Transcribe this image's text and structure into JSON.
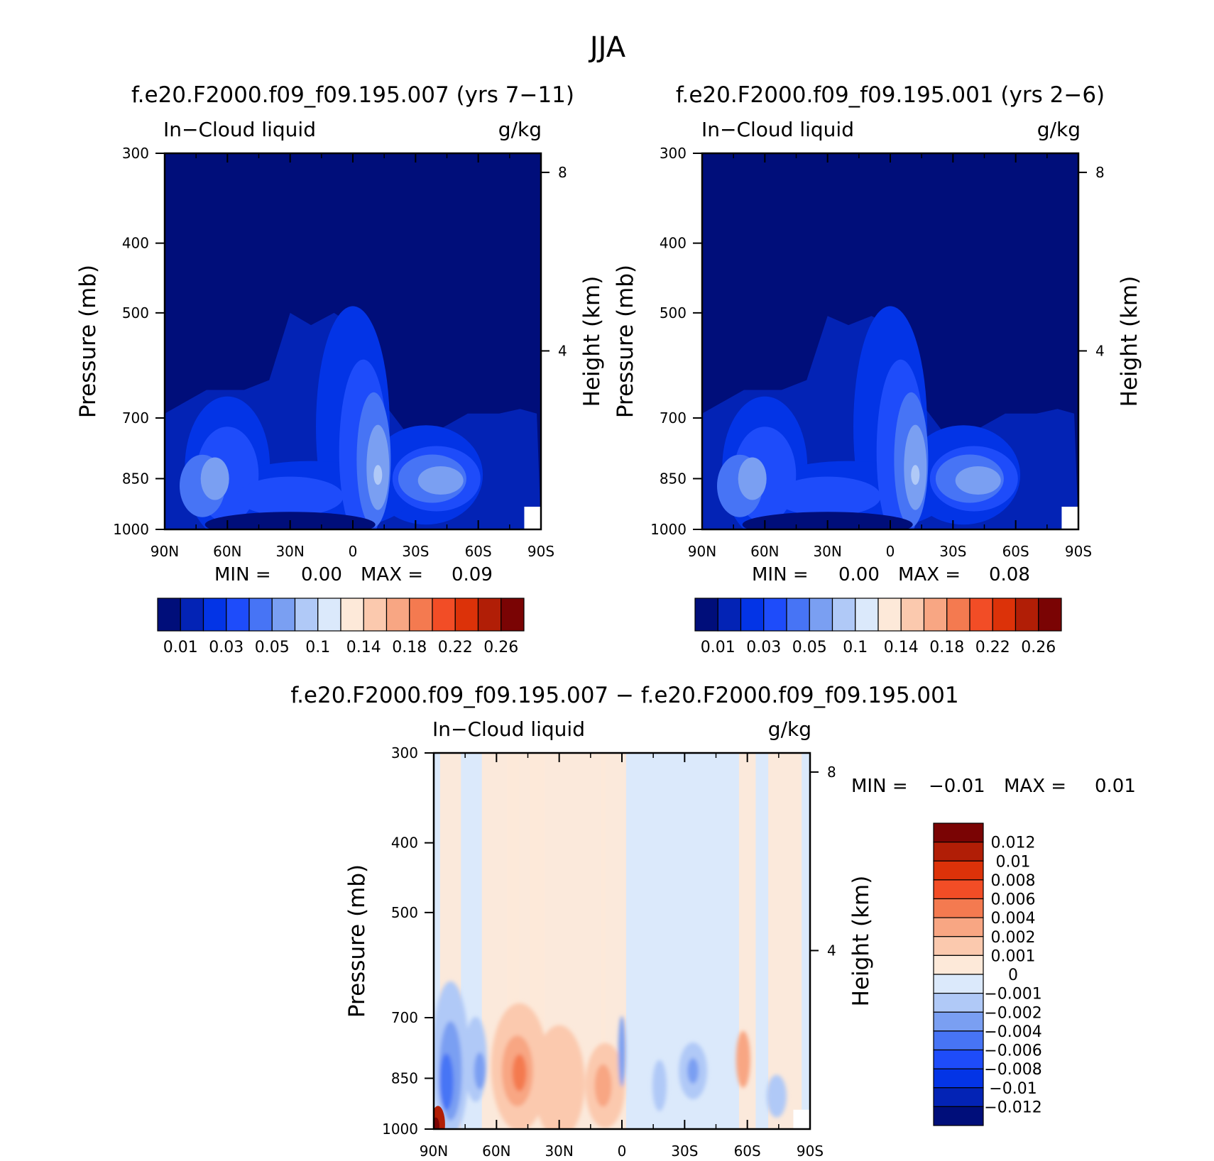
{
  "figure": {
    "title": "JJA"
  },
  "colors": {
    "abs_scale": [
      "#000e7a",
      "#0323b5",
      "#0334e6",
      "#1e4cfa",
      "#4774f5",
      "#7a9ff2",
      "#b0c9f7",
      "#dbe9fb",
      "#fde9d9",
      "#fbc9ae",
      "#f8a683",
      "#f47a50",
      "#f24d26",
      "#dc3209",
      "#b11e06",
      "#7a0404"
    ],
    "diff_scale": [
      "#000e7a",
      "#0323b5",
      "#0334e6",
      "#1e4cfa",
      "#4774f5",
      "#7a9ff2",
      "#b0c9f7",
      "#dbe9fb",
      "#fde9d9",
      "#fbc9ae",
      "#f8a683",
      "#f47a50",
      "#f24d26",
      "#dc3209",
      "#b11e06",
      "#7a0404"
    ]
  },
  "chart_data": [
    {
      "type": "heatmap",
      "title": "f.e20.F2000.f09_f09.195.007 (yrs 7−11)",
      "subtitle_left": "In−Cloud liquid",
      "subtitle_right": "g/kg",
      "xlabel": "",
      "ylabel": "Pressure (mb)",
      "ylabel_right": "Height (km)",
      "x_ticks": [
        "90N",
        "60N",
        "30N",
        "0",
        "30S",
        "60S",
        "90S"
      ],
      "y_ticks": [
        "300",
        "400",
        "500",
        "700",
        "850",
        "1000"
      ],
      "y2_ticks": [
        "8",
        "4"
      ],
      "ylim": [
        1000,
        300
      ],
      "y_scale": "log",
      "min_label": "MIN =",
      "min_value": "0.00",
      "max_label": "MAX =",
      "max_value": "0.09",
      "colorbar_labels": [
        "0.01",
        "0.03",
        "0.05",
        "0.1",
        "0.14",
        "0.18",
        "0.22",
        "0.26"
      ],
      "profile_top_pressure": [
        {
          "lat": 90,
          "p": 690
        },
        {
          "lat": 70,
          "p": 640
        },
        {
          "lat": 52,
          "p": 640
        },
        {
          "lat": 40,
          "p": 620
        },
        {
          "lat": 30,
          "p": 500
        },
        {
          "lat": 20,
          "p": 520
        },
        {
          "lat": 9,
          "p": 500
        },
        {
          "lat": 0,
          "p": 520
        },
        {
          "lat": -10,
          "p": 640
        },
        {
          "lat": -25,
          "p": 730
        },
        {
          "lat": -40,
          "p": 730
        },
        {
          "lat": -55,
          "p": 690
        },
        {
          "lat": -70,
          "p": 690
        },
        {
          "lat": -80,
          "p": 680
        },
        {
          "lat": -88,
          "p": 690
        }
      ]
    },
    {
      "type": "heatmap",
      "title": "f.e20.F2000.f09_f09.195.001 (yrs 2−6)",
      "subtitle_left": "In−Cloud liquid",
      "subtitle_right": "g/kg",
      "xlabel": "",
      "ylabel": "Pressure (mb)",
      "ylabel_right": "Height (km)",
      "x_ticks": [
        "90N",
        "60N",
        "30N",
        "0",
        "30S",
        "60S",
        "90S"
      ],
      "y_ticks": [
        "300",
        "400",
        "500",
        "700",
        "850",
        "1000"
      ],
      "y2_ticks": [
        "8",
        "4"
      ],
      "ylim": [
        1000,
        300
      ],
      "y_scale": "log",
      "min_label": "MIN =",
      "min_value": "0.00",
      "max_label": "MAX =",
      "max_value": "0.08",
      "colorbar_labels": [
        "0.01",
        "0.03",
        "0.05",
        "0.1",
        "0.14",
        "0.18",
        "0.22",
        "0.26"
      ],
      "profile_top_pressure": [
        {
          "lat": 90,
          "p": 690
        },
        {
          "lat": 70,
          "p": 640
        },
        {
          "lat": 52,
          "p": 640
        },
        {
          "lat": 40,
          "p": 620
        },
        {
          "lat": 30,
          "p": 505
        },
        {
          "lat": 20,
          "p": 520
        },
        {
          "lat": 9,
          "p": 505
        },
        {
          "lat": 0,
          "p": 520
        },
        {
          "lat": -10,
          "p": 640
        },
        {
          "lat": -25,
          "p": 730
        },
        {
          "lat": -40,
          "p": 730
        },
        {
          "lat": -55,
          "p": 690
        },
        {
          "lat": -70,
          "p": 690
        },
        {
          "lat": -80,
          "p": 680
        },
        {
          "lat": -88,
          "p": 690
        }
      ]
    },
    {
      "type": "heatmap",
      "title": "f.e20.F2000.f09_f09.195.007 − f.e20.F2000.f09_f09.195.001",
      "subtitle_left": "In−Cloud liquid",
      "subtitle_right": "g/kg",
      "xlabel": "",
      "ylabel": "Pressure (mb)",
      "ylabel_right": "Height (km)",
      "x_ticks": [
        "90N",
        "60N",
        "30N",
        "0",
        "30S",
        "60S",
        "90S"
      ],
      "y_ticks": [
        "300",
        "400",
        "500",
        "700",
        "850",
        "1000"
      ],
      "y2_ticks": [
        "8",
        "4"
      ],
      "ylim": [
        1000,
        300
      ],
      "y_scale": "log",
      "min_label": "MIN =",
      "min_value": "−0.01",
      "max_label": "MAX =",
      "max_value": "0.01",
      "colorbar_labels": [
        "0.012",
        "0.01",
        "0.008",
        "0.006",
        "0.004",
        "0.002",
        "0.001",
        "0",
        "−0.001",
        "−0.002",
        "−0.004",
        "−0.006",
        "−0.008",
        "−0.01",
        "−0.012"
      ]
    }
  ]
}
